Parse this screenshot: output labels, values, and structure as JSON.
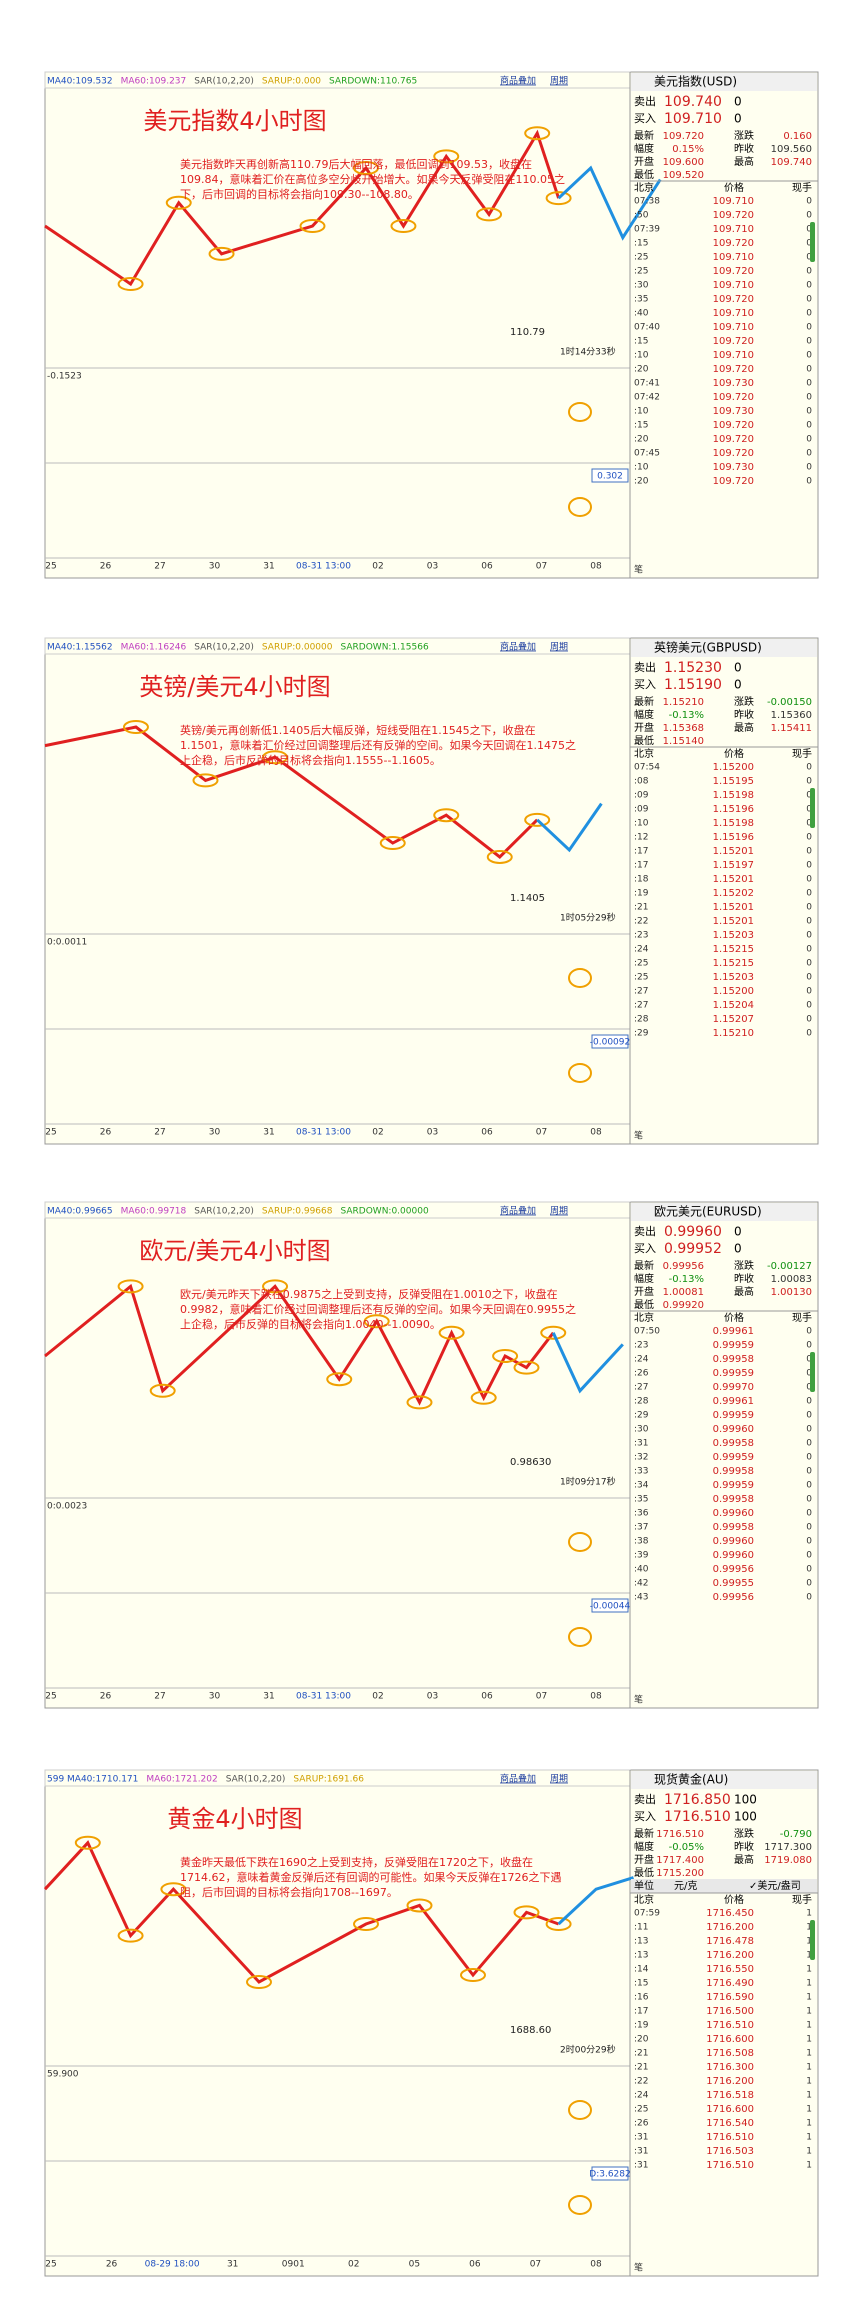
{
  "panels": [
    {
      "header": [
        "MA40:109.532",
        "MA60:109.237",
        "SAR(10,2,20)",
        "SARUP:0.000",
        "SARDOWN:110.765"
      ],
      "buttons": [
        "商品叠加",
        "周期"
      ],
      "title": "美元指数4小时图",
      "annotation": "美元指数昨天再创新高110.79后大幅回落，最低回调到109.53，收盘在109.84，意味着汇价在高位多空分歧开始增大。如果今天反弹受阻在110.05之下，后市回调的目标将会指向109.30--108.80。",
      "price_label": "110.79",
      "timer": "1时14分33秒",
      "ind1_label": "-0.1523",
      "ind2_label": "0.302",
      "xlabels": [
        "25",
        "26",
        "27",
        "30",
        "31",
        "08-31 13:00",
        "02",
        "03",
        "06",
        "07",
        "08"
      ],
      "quote": {
        "name": "美元指数(USD)",
        "bid": [
          "卖出",
          "109.740",
          "0"
        ],
        "ask": [
          "买入",
          "109.710",
          "0"
        ],
        "stats": [
          [
            "最新",
            "109.720",
            "涨跌",
            "0.160"
          ],
          [
            "幅度",
            "0.15%",
            "昨收",
            "109.560"
          ],
          [
            "开盘",
            "109.600",
            "最高",
            "109.740"
          ],
          [
            "最低",
            "109.520"
          ]
        ],
        "columns": [
          "北京",
          "价格",
          "现手"
        ],
        "rows": [
          [
            "07:38",
            "109.710",
            "0"
          ],
          [
            ":50",
            "109.720",
            "0"
          ],
          [
            "07:39",
            "109.710",
            "0"
          ],
          [
            ":15",
            "109.720",
            "0"
          ],
          [
            ":25",
            "109.710",
            "0"
          ],
          [
            ":25",
            "109.720",
            "0"
          ],
          [
            ":30",
            "109.710",
            "0"
          ],
          [
            ":35",
            "109.720",
            "0"
          ],
          [
            ":40",
            "109.710",
            "0"
          ],
          [
            "07:40",
            "109.710",
            "0"
          ],
          [
            ":15",
            "109.720",
            "0"
          ],
          [
            ":10",
            "109.710",
            "0"
          ],
          [
            ":20",
            "109.720",
            "0"
          ],
          [
            "07:41",
            "109.730",
            "0"
          ],
          [
            "07:42",
            "109.720",
            "0"
          ],
          [
            ":10",
            "109.730",
            "0"
          ],
          [
            ":15",
            "109.720",
            "0"
          ],
          [
            ":20",
            "109.720",
            "0"
          ],
          [
            "07:45",
            "109.720",
            "0"
          ],
          [
            ":10",
            "109.730",
            "0"
          ],
          [
            ":20",
            "109.720",
            "0"
          ]
        ],
        "footer": "笔"
      }
    },
    {
      "header": [
        "MA40:1.15562",
        "MA60:1.16246",
        "SAR(10,2,20)",
        "SARUP:0.00000",
        "SARDOWN:1.15566"
      ],
      "buttons": [
        "商品叠加",
        "周期"
      ],
      "title": "英镑/美元4小时图",
      "annotation": "英镑/美元再创新低1.1405后大幅反弹，短线受阻在1.1545之下，收盘在1.1501，意味着汇价经过回调整理后还有反弹的空间。如果今天回调在1.1475之上企稳，后市反弹的目标将会指向1.1555--1.1605。",
      "price_label": "1.1405",
      "timer": "1时05分29秒",
      "ind1_label": "0:0.0011",
      "ind2_label": "-0.00092",
      "xlabels": [
        "25",
        "26",
        "27",
        "30",
        "31",
        "08-31 13:00",
        "02",
        "03",
        "06",
        "07",
        "08"
      ],
      "quote": {
        "name": "英镑美元(GBPUSD)",
        "bid": [
          "卖出",
          "1.15230",
          "0"
        ],
        "ask": [
          "买入",
          "1.15190",
          "0"
        ],
        "stats": [
          [
            "最新",
            "1.15210",
            "涨跌",
            "-0.00150"
          ],
          [
            "幅度",
            "-0.13%",
            "昨收",
            "1.15360"
          ],
          [
            "开盘",
            "1.15368",
            "最高",
            "1.15411"
          ],
          [
            "最低",
            "1.15140"
          ]
        ],
        "columns": [
          "北京",
          "价格",
          "现手"
        ],
        "rows": [
          [
            "07:54",
            "1.15200",
            "0"
          ],
          [
            ":08",
            "1.15195",
            "0"
          ],
          [
            ":09",
            "1.15198",
            "0"
          ],
          [
            ":09",
            "1.15196",
            "0"
          ],
          [
            ":10",
            "1.15198",
            "0"
          ],
          [
            ":12",
            "1.15196",
            "0"
          ],
          [
            ":17",
            "1.15201",
            "0"
          ],
          [
            ":17",
            "1.15197",
            "0"
          ],
          [
            ":18",
            "1.15201",
            "0"
          ],
          [
            ":19",
            "1.15202",
            "0"
          ],
          [
            ":21",
            "1.15201",
            "0"
          ],
          [
            ":22",
            "1.15201",
            "0"
          ],
          [
            ":23",
            "1.15203",
            "0"
          ],
          [
            ":24",
            "1.15215",
            "0"
          ],
          [
            ":25",
            "1.15215",
            "0"
          ],
          [
            ":25",
            "1.15203",
            "0"
          ],
          [
            ":27",
            "1.15200",
            "0"
          ],
          [
            ":27",
            "1.15204",
            "0"
          ],
          [
            ":28",
            "1.15207",
            "0"
          ],
          [
            ":29",
            "1.15210",
            "0"
          ]
        ],
        "footer": "笔"
      }
    },
    {
      "header": [
        "MA40:0.99665",
        "MA60:0.99718",
        "SAR(10,2,20)",
        "SARUP:0.99668",
        "SARDOWN:0.00000"
      ],
      "buttons": [
        "商品叠加",
        "周期"
      ],
      "title": "欧元/美元4小时图",
      "annotation": "欧元/美元昨天下跌在0.9875之上受到支持，反弹受阻在1.0010之下，收盘在0.9982，意味着汇价经过回调整理后还有反弹的空间。如果今天回调在0.9955之上企稳，后市反弹的目标将会指向1.0040--1.0090。",
      "price_label": "0.98630",
      "timer": "1时09分17秒",
      "ind1_label": "0:0.0023",
      "ind2_label": "-0.00044",
      "xlabels": [
        "25",
        "26",
        "27",
        "30",
        "31",
        "08-31 13:00",
        "02",
        "03",
        "06",
        "07",
        "08"
      ],
      "quote": {
        "name": "欧元美元(EURUSD)",
        "bid": [
          "卖出",
          "0.99960",
          "0"
        ],
        "ask": [
          "买入",
          "0.99952",
          "0"
        ],
        "stats": [
          [
            "最新",
            "0.99956",
            "涨跌",
            "-0.00127"
          ],
          [
            "幅度",
            "-0.13%",
            "昨收",
            "1.00083"
          ],
          [
            "开盘",
            "1.00081",
            "最高",
            "1.00130"
          ],
          [
            "最低",
            "0.99920"
          ]
        ],
        "columns": [
          "北京",
          "价格",
          "现手"
        ],
        "rows": [
          [
            "07:50",
            "0.99961",
            "0"
          ],
          [
            ":23",
            "0.99959",
            "0"
          ],
          [
            ":24",
            "0.99958",
            "0"
          ],
          [
            ":26",
            "0.99959",
            "0"
          ],
          [
            ":27",
            "0.99970",
            "0"
          ],
          [
            ":28",
            "0.99961",
            "0"
          ],
          [
            ":29",
            "0.99959",
            "0"
          ],
          [
            ":30",
            "0.99960",
            "0"
          ],
          [
            ":31",
            "0.99958",
            "0"
          ],
          [
            ":32",
            "0.99959",
            "0"
          ],
          [
            ":33",
            "0.99958",
            "0"
          ],
          [
            ":34",
            "0.99959",
            "0"
          ],
          [
            ":35",
            "0.99958",
            "0"
          ],
          [
            ":36",
            "0.99960",
            "0"
          ],
          [
            ":37",
            "0.99958",
            "0"
          ],
          [
            ":38",
            "0.99960",
            "0"
          ],
          [
            ":39",
            "0.99960",
            "0"
          ],
          [
            ":40",
            "0.99956",
            "0"
          ],
          [
            ":42",
            "0.99955",
            "0"
          ],
          [
            ":43",
            "0.99956",
            "0"
          ]
        ],
        "footer": "笔"
      }
    },
    {
      "header": [
        "599 MA40:1710.171",
        "MA60:1721.202",
        "SAR(10,2,20)",
        "SARUP:1691.66"
      ],
      "buttons": [
        "商品叠加",
        "周期"
      ],
      "title": "黄金4小时图",
      "annotation": "黄金昨天最低下跌在1690之上受到支持，反弹受阻在1720之下，收盘在1714.62，意味着黄金反弹后还有回调的可能性。如果今天反弹在1726之下遇阻，后市回调的目标将会指向1708--1697。",
      "price_label": "1688.60",
      "timer": "2时00分29秒",
      "ind1_label": "59.900",
      "ind2_label": "D:3.6282",
      "xlabels": [
        "25",
        "26",
        "08-29 18:00",
        "31",
        "0901",
        "02",
        "05",
        "06",
        "07",
        "08"
      ],
      "quote": {
        "name": "现货黄金(AU)",
        "bid": [
          "卖出",
          "1716.850",
          "100"
        ],
        "ask": [
          "买入",
          "1716.510",
          "100"
        ],
        "stats": [
          [
            "最新",
            "1716.510",
            "涨跌",
            "-0.790"
          ],
          [
            "幅度",
            "-0.05%",
            "昨收",
            "1717.300"
          ],
          [
            "开盘",
            "1717.400",
            "最高",
            "1719.080"
          ],
          [
            "最低",
            "1715.200"
          ]
        ],
        "unit": [
          "单位",
          "元/克",
          "✓美元/盎司"
        ],
        "columns": [
          "北京",
          "价格",
          "现手"
        ],
        "rows": [
          [
            "07:59",
            "1716.450",
            "1"
          ],
          [
            ":11",
            "1716.200",
            "1"
          ],
          [
            ":13",
            "1716.478",
            "1"
          ],
          [
            ":13",
            "1716.200",
            "1"
          ],
          [
            ":14",
            "1716.550",
            "1"
          ],
          [
            ":15",
            "1716.490",
            "1"
          ],
          [
            ":16",
            "1716.590",
            "1"
          ],
          [
            ":17",
            "1716.500",
            "1"
          ],
          [
            ":19",
            "1716.510",
            "1"
          ],
          [
            ":20",
            "1716.600",
            "1"
          ],
          [
            ":21",
            "1716.508",
            "1"
          ],
          [
            ":21",
            "1716.300",
            "1"
          ],
          [
            ":22",
            "1716.200",
            "1"
          ],
          [
            ":24",
            "1716.518",
            "1"
          ],
          [
            ":25",
            "1716.600",
            "1"
          ],
          [
            ":26",
            "1716.540",
            "1"
          ],
          [
            ":31",
            "1716.510",
            "1"
          ],
          [
            ":31",
            "1716.503",
            "1"
          ],
          [
            ":31",
            "1716.510",
            "1"
          ]
        ],
        "footer": "笔"
      }
    }
  ]
}
